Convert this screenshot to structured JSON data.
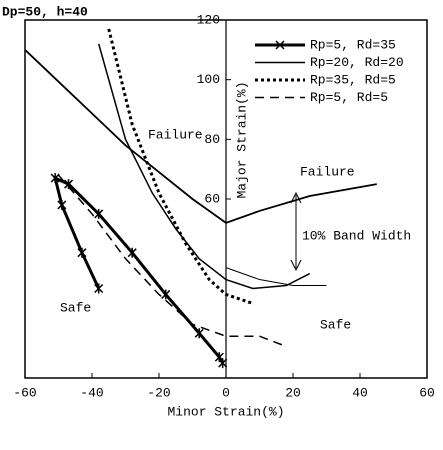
{
  "chart_data": {
    "type": "line",
    "title": "Dp=50, h=40",
    "x_label": "Minor Strain(%)",
    "y_label": "Major Strain(%)",
    "xlim": [
      -60,
      60
    ],
    "ylim": [
      0,
      120
    ],
    "xticks": [
      -60,
      -40,
      -20,
      0,
      20,
      40,
      60
    ],
    "yticks": [
      60,
      80,
      100,
      120
    ],
    "legend": "upper right",
    "annotations": [
      "Failure",
      "Failure",
      "Safe",
      "Safe",
      "10% Band Width"
    ],
    "series": [
      {
        "name": "Rp=5, Rd=35",
        "color": "#000000",
        "style": "solid",
        "width": 3,
        "marker": "x",
        "x": [
          -38,
          -43,
          -49,
          -51,
          -47,
          -38,
          -28,
          -18,
          -8,
          -2,
          -1
        ],
        "values": [
          30,
          42,
          58,
          67,
          65,
          55,
          42,
          28,
          15,
          7,
          5
        ]
      },
      {
        "name": "Rp=20, Rd=20",
        "color": "#000000",
        "style": "solid",
        "width": 1.5,
        "x": [
          -38,
          -30,
          -22,
          -15,
          -8,
          0,
          8,
          18,
          25
        ],
        "values": [
          112,
          80,
          62,
          50,
          40,
          33,
          30,
          31,
          35
        ]
      },
      {
        "name": "Rp=35, Rd=5",
        "color": "#000000",
        "style": "dotted",
        "width": 3,
        "x": [
          -35,
          -28,
          -20,
          -12,
          -5,
          0,
          8
        ],
        "values": [
          117,
          85,
          62,
          45,
          33,
          28,
          25
        ]
      },
      {
        "name": "Rp=5, Rd=5",
        "color": "#000000",
        "style": "dashed",
        "width": 1.5,
        "x": [
          -50,
          -40,
          -30,
          -20,
          -10,
          0,
          10,
          17
        ],
        "values": [
          68,
          55,
          40,
          28,
          18,
          14,
          14,
          11
        ]
      },
      {
        "color": "#000000",
        "style": "solid",
        "width": 1.8,
        "x": [
          -60,
          -30,
          -10,
          0,
          10,
          25,
          45
        ],
        "values": [
          110,
          78,
          60,
          52,
          56,
          61,
          65
        ]
      },
      {
        "color": "#000000",
        "style": "solid",
        "width": 1,
        "x": [
          0,
          10,
          20,
          30
        ],
        "values": [
          37,
          33,
          31,
          31
        ]
      }
    ]
  }
}
